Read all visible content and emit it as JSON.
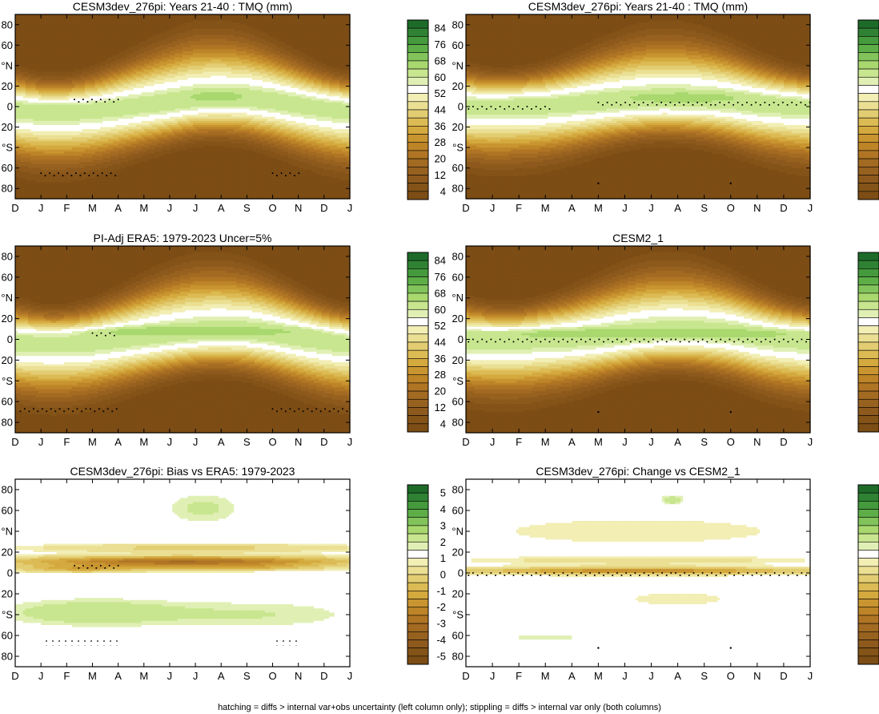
{
  "footnote": "hatching = diffs > internal var+obs uncertainty (left column only); stippling = diffs > internal var only (both columns)",
  "months": [
    "D",
    "J",
    "F",
    "M",
    "A",
    "M",
    "J",
    "J",
    "A",
    "S",
    "O",
    "N",
    "D",
    "J"
  ],
  "lat_labels": [
    "80",
    "60",
    "°N",
    "20",
    "0",
    "20",
    "°S",
    "60",
    "80"
  ],
  "colorbars": {
    "tmq": {
      "labels": [
        "84",
        "76",
        "68",
        "60",
        "52",
        "44",
        "36",
        "28",
        "20",
        "12",
        "4"
      ],
      "colors": [
        "#1e6b29",
        "#2f8233",
        "#449a3c",
        "#5eae48",
        "#82c45b",
        "#a8d86e",
        "#c8e68f",
        "#e0f0b4",
        "#ffffff",
        "#f2eeb4",
        "#eadf93",
        "#e3cd72",
        "#dcbb55",
        "#d4a93e",
        "#c99530",
        "#bd8428",
        "#b07524",
        "#a36a22",
        "#97611f",
        "#8d591c",
        "#845318",
        "#7c4d15"
      ]
    },
    "diff": {
      "labels": [
        "5",
        "4",
        "3",
        "2",
        "1",
        "0",
        "-1",
        "-2",
        "-3",
        "-4",
        "-5"
      ],
      "colors": [
        "#1e6b29",
        "#2f8233",
        "#449a3c",
        "#5eae48",
        "#82c45b",
        "#a8d86e",
        "#c8e68f",
        "#e0f0b4",
        "#ffffff",
        "#f2eeb4",
        "#eadf93",
        "#e3cd72",
        "#dcbb55",
        "#d4a93e",
        "#c99530",
        "#bd8428",
        "#b07524",
        "#a36a22",
        "#97611f",
        "#8d591c",
        "#845318",
        "#7c4d15"
      ]
    }
  },
  "chart_data": [
    {
      "type": "heatmap",
      "title": "CESM3dev_276pi: Years 21-40 : TMQ (mm)",
      "kind": "tmq",
      "x": [
        "D",
        "J",
        "F",
        "M",
        "A",
        "M",
        "J",
        "J",
        "A",
        "S",
        "O",
        "N",
        "D",
        "J"
      ],
      "y_range": [
        -90,
        90
      ],
      "peak_mm": 50,
      "itcz": {
        "lat_by_month": [
          -2,
          -4,
          -4,
          -3,
          -1,
          1,
          3,
          6,
          7,
          7,
          5,
          2,
          -1,
          -3
        ]
      },
      "green_patch": [
        {
          "month": 7.8,
          "lat": 10,
          "width_months": 0.9
        }
      ],
      "stipples": [
        {
          "x": [
            2.3,
            4.0
          ],
          "lat": 7
        },
        {
          "x": [
            1.0,
            4.0
          ],
          "lat": -65
        },
        {
          "x": [
            10.0,
            11.1
          ],
          "lat": -65
        }
      ]
    },
    {
      "type": "heatmap",
      "title": "CESM3dev_276pi: Years 21-40 : TMQ (mm)",
      "kind": "tmq",
      "x": [
        "D",
        "J",
        "F",
        "M",
        "A",
        "M",
        "J",
        "J",
        "A",
        "S",
        "O",
        "N",
        "D",
        "J"
      ],
      "y_range": [
        -90,
        90
      ],
      "peak_mm": 50,
      "itcz": {
        "lat_by_month": [
          1,
          1,
          2,
          2,
          3,
          4,
          5,
          6,
          6,
          6,
          5,
          3,
          2,
          1
        ]
      },
      "green_patch": [
        {
          "month": 8.2,
          "lat": 9,
          "width_months": 1.8
        }
      ],
      "stipples": [
        {
          "x": [
            0.1,
            3.3
          ],
          "lat": 0
        },
        {
          "x": [
            5.0,
            13.0
          ],
          "lat": 4
        }
      ],
      "points": [
        {
          "x": 5.0,
          "lat": -75
        },
        {
          "x": 10.0,
          "lat": -75
        }
      ]
    },
    {
      "type": "heatmap",
      "title": "PI-Adj ERA5: 1979-2023 Uncer=5%",
      "kind": "tmq",
      "x": [
        "D",
        "J",
        "F",
        "M",
        "A",
        "M",
        "J",
        "J",
        "A",
        "S",
        "O",
        "N",
        "D",
        "J"
      ],
      "y_range": [
        -90,
        90
      ],
      "peak_mm": 50,
      "itcz": {
        "lat_by_month": [
          -2,
          -3,
          -3,
          -2,
          0,
          2,
          4,
          6,
          7,
          7,
          5,
          2,
          -1,
          -3
        ]
      },
      "green_patch": [
        {
          "month": 6.5,
          "lat": 8,
          "width_months": 4.0
        }
      ],
      "stipples": [
        {
          "x": [
            3.0,
            4.0
          ],
          "lat": 6
        },
        {
          "x": [
            0.2,
            4.0
          ],
          "lat": -67
        },
        {
          "x": [
            10.0,
            13.0
          ],
          "lat": -67
        }
      ]
    },
    {
      "type": "heatmap",
      "title": "CESM2_1",
      "kind": "tmq",
      "x": [
        "D",
        "J",
        "F",
        "M",
        "A",
        "M",
        "J",
        "J",
        "A",
        "S",
        "O",
        "N",
        "D",
        "J"
      ],
      "y_range": [
        -90,
        90
      ],
      "peak_mm": 50,
      "itcz": {
        "lat_by_month": [
          0,
          0,
          0,
          1,
          1,
          2,
          4,
          6,
          7,
          7,
          6,
          3,
          1,
          0
        ]
      },
      "green_patch": [
        {
          "month": 6.8,
          "lat": 6,
          "width_months": 5.5
        }
      ],
      "stipples": [
        {
          "x": [
            0.1,
            13.0
          ],
          "lat": 0
        }
      ],
      "points": [
        {
          "x": 5.0,
          "lat": -70
        },
        {
          "x": 10.0,
          "lat": -70
        }
      ]
    },
    {
      "type": "heatmap",
      "title": "CESM3dev_276pi: Bias vs ERA5: 1979-2023",
      "kind": "diff",
      "x": [
        "D",
        "J",
        "F",
        "M",
        "A",
        "M",
        "J",
        "J",
        "A",
        "S",
        "O",
        "N",
        "D",
        "J"
      ],
      "y_range": [
        -90,
        90
      ],
      "features": [
        {
          "month": 6.5,
          "lat": 11,
          "width_months": 13,
          "lat_width": 10,
          "value": -4.0
        },
        {
          "month": 2.5,
          "lat": 4,
          "width_months": 5,
          "lat_width": 7,
          "value": -2.0
        },
        {
          "month": 8.5,
          "lat": 5,
          "width_months": 7,
          "lat_width": 6,
          "value": -1.5
        },
        {
          "month": 7.0,
          "lat": 24,
          "width_months": 13,
          "lat_width": 8,
          "value": -1.2
        },
        {
          "month": 3.0,
          "lat": -38,
          "width_months": 7,
          "lat_width": 25,
          "value": 0.9
        },
        {
          "month": 9.5,
          "lat": -40,
          "width_months": 8,
          "lat_width": 28,
          "value": 0.5
        },
        {
          "month": 7.3,
          "lat": 62,
          "width_months": 3.0,
          "lat_width": 30,
          "value": 0.6
        }
      ],
      "stipples": [
        {
          "x": [
            2.3,
            4.0
          ],
          "lat": 7
        }
      ],
      "hatching": [
        {
          "x": [
            1.0,
            4.0
          ],
          "lat": -65
        },
        {
          "x": [
            10.0,
            11.0
          ],
          "lat": -65
        }
      ]
    },
    {
      "type": "heatmap",
      "title": "CESM3dev_276pi: Change vs CESM2_1",
      "kind": "diff",
      "x": [
        "D",
        "J",
        "F",
        "M",
        "A",
        "M",
        "J",
        "J",
        "A",
        "S",
        "O",
        "N",
        "D",
        "J"
      ],
      "y_range": [
        -90,
        90
      ],
      "features": [
        {
          "month": 6.5,
          "lat": 2,
          "width_months": 13,
          "lat_width": 7,
          "value": -3.0
        },
        {
          "month": 6.5,
          "lat": 12,
          "width_months": 13,
          "lat_width": 8,
          "value": -0.8
        },
        {
          "month": 6.5,
          "lat": 40,
          "width_months": 13,
          "lat_width": 30,
          "value": -0.5
        },
        {
          "month": 8.0,
          "lat": -25,
          "width_months": 6,
          "lat_width": 20,
          "value": -0.4
        },
        {
          "month": 7.8,
          "lat": 70,
          "width_months": 0.9,
          "lat_width": 10,
          "value": 0.8
        },
        {
          "month": 3.0,
          "lat": -62,
          "width_months": 3.0,
          "lat_width": 4,
          "value": 0.6
        }
      ],
      "stipples": [
        {
          "x": [
            0.1,
            13.0
          ],
          "lat": 0
        }
      ],
      "points": [
        {
          "x": 5.0,
          "lat": -72
        },
        {
          "x": 10.0,
          "lat": -72
        }
      ]
    }
  ]
}
